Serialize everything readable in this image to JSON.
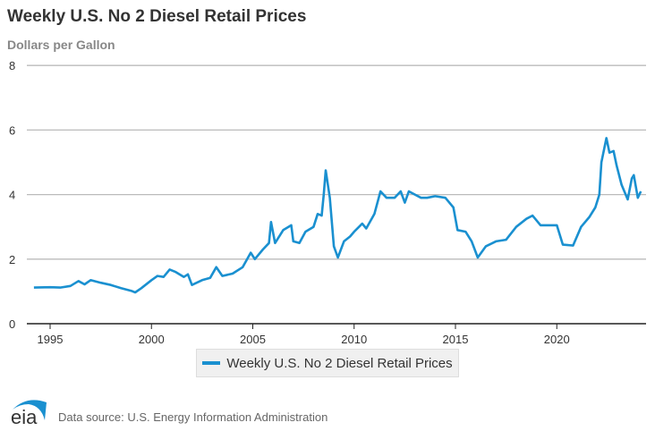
{
  "chart_data": {
    "type": "line",
    "title": "Weekly U.S. No 2 Diesel Retail Prices",
    "ylabel": "Dollars per Gallon",
    "xlabel": "",
    "xlim": [
      1994.2,
      2024.6
    ],
    "ylim": [
      0,
      8
    ],
    "yticks": [
      0,
      2,
      4,
      6,
      8
    ],
    "xticks": [
      1995,
      2000,
      2005,
      2010,
      2015,
      2020
    ],
    "grid": "horizontal",
    "legend_placement": "bottom",
    "color": "#1a90d0",
    "series": [
      {
        "name": "Weekly U.S. No 2 Diesel Retail Prices",
        "points": [
          [
            1994.2,
            1.12
          ],
          [
            1995,
            1.13
          ],
          [
            1995.5,
            1.12
          ],
          [
            1996,
            1.17
          ],
          [
            1996.4,
            1.32
          ],
          [
            1996.7,
            1.22
          ],
          [
            1997,
            1.35
          ],
          [
            1997.5,
            1.27
          ],
          [
            1998,
            1.2
          ],
          [
            1998.5,
            1.1
          ],
          [
            1999.0,
            1.02
          ],
          [
            1999.2,
            0.97
          ],
          [
            1999.5,
            1.1
          ],
          [
            2000,
            1.35
          ],
          [
            2000.3,
            1.48
          ],
          [
            2000.6,
            1.45
          ],
          [
            2000.9,
            1.68
          ],
          [
            2001.2,
            1.6
          ],
          [
            2001.6,
            1.45
          ],
          [
            2001.8,
            1.53
          ],
          [
            2002.0,
            1.2
          ],
          [
            2002.5,
            1.35
          ],
          [
            2002.9,
            1.42
          ],
          [
            2003.2,
            1.75
          ],
          [
            2003.5,
            1.48
          ],
          [
            2004.0,
            1.55
          ],
          [
            2004.5,
            1.75
          ],
          [
            2004.9,
            2.2
          ],
          [
            2005.1,
            2.0
          ],
          [
            2005.5,
            2.3
          ],
          [
            2005.8,
            2.5
          ],
          [
            2005.9,
            3.15
          ],
          [
            2006.1,
            2.5
          ],
          [
            2006.5,
            2.9
          ],
          [
            2006.9,
            3.05
          ],
          [
            2007.0,
            2.55
          ],
          [
            2007.3,
            2.5
          ],
          [
            2007.6,
            2.85
          ],
          [
            2008.0,
            3.0
          ],
          [
            2008.2,
            3.4
          ],
          [
            2008.4,
            3.35
          ],
          [
            2008.5,
            4.0
          ],
          [
            2008.6,
            4.75
          ],
          [
            2008.8,
            3.9
          ],
          [
            2009.0,
            2.4
          ],
          [
            2009.2,
            2.05
          ],
          [
            2009.5,
            2.55
          ],
          [
            2009.8,
            2.7
          ],
          [
            2010.0,
            2.85
          ],
          [
            2010.4,
            3.1
          ],
          [
            2010.6,
            2.95
          ],
          [
            2011.0,
            3.4
          ],
          [
            2011.3,
            4.1
          ],
          [
            2011.6,
            3.9
          ],
          [
            2012.0,
            3.9
          ],
          [
            2012.3,
            4.1
          ],
          [
            2012.5,
            3.75
          ],
          [
            2012.7,
            4.1
          ],
          [
            2013.0,
            4.0
          ],
          [
            2013.3,
            3.9
          ],
          [
            2013.6,
            3.9
          ],
          [
            2014.0,
            3.95
          ],
          [
            2014.5,
            3.9
          ],
          [
            2014.9,
            3.6
          ],
          [
            2015.1,
            2.9
          ],
          [
            2015.5,
            2.85
          ],
          [
            2015.8,
            2.55
          ],
          [
            2016.1,
            2.05
          ],
          [
            2016.5,
            2.4
          ],
          [
            2017.0,
            2.55
          ],
          [
            2017.5,
            2.6
          ],
          [
            2018.0,
            3.0
          ],
          [
            2018.5,
            3.25
          ],
          [
            2018.8,
            3.35
          ],
          [
            2019.2,
            3.05
          ],
          [
            2019.6,
            3.05
          ],
          [
            2020.0,
            3.05
          ],
          [
            2020.3,
            2.45
          ],
          [
            2020.8,
            2.42
          ],
          [
            2021.2,
            3.0
          ],
          [
            2021.6,
            3.3
          ],
          [
            2021.9,
            3.6
          ],
          [
            2022.1,
            4.0
          ],
          [
            2022.2,
            5.0
          ],
          [
            2022.45,
            5.75
          ],
          [
            2022.6,
            5.3
          ],
          [
            2022.8,
            5.35
          ],
          [
            2022.95,
            4.9
          ],
          [
            2023.2,
            4.3
          ],
          [
            2023.5,
            3.85
          ],
          [
            2023.7,
            4.5
          ],
          [
            2023.8,
            4.6
          ],
          [
            2024.0,
            3.9
          ],
          [
            2024.15,
            4.1
          ]
        ]
      }
    ]
  },
  "legend": {
    "label": "Weekly U.S. No 2 Diesel Retail Prices"
  },
  "footer": {
    "source": "Data source: U.S. Energy Information Administration",
    "logo_text": "eia"
  }
}
